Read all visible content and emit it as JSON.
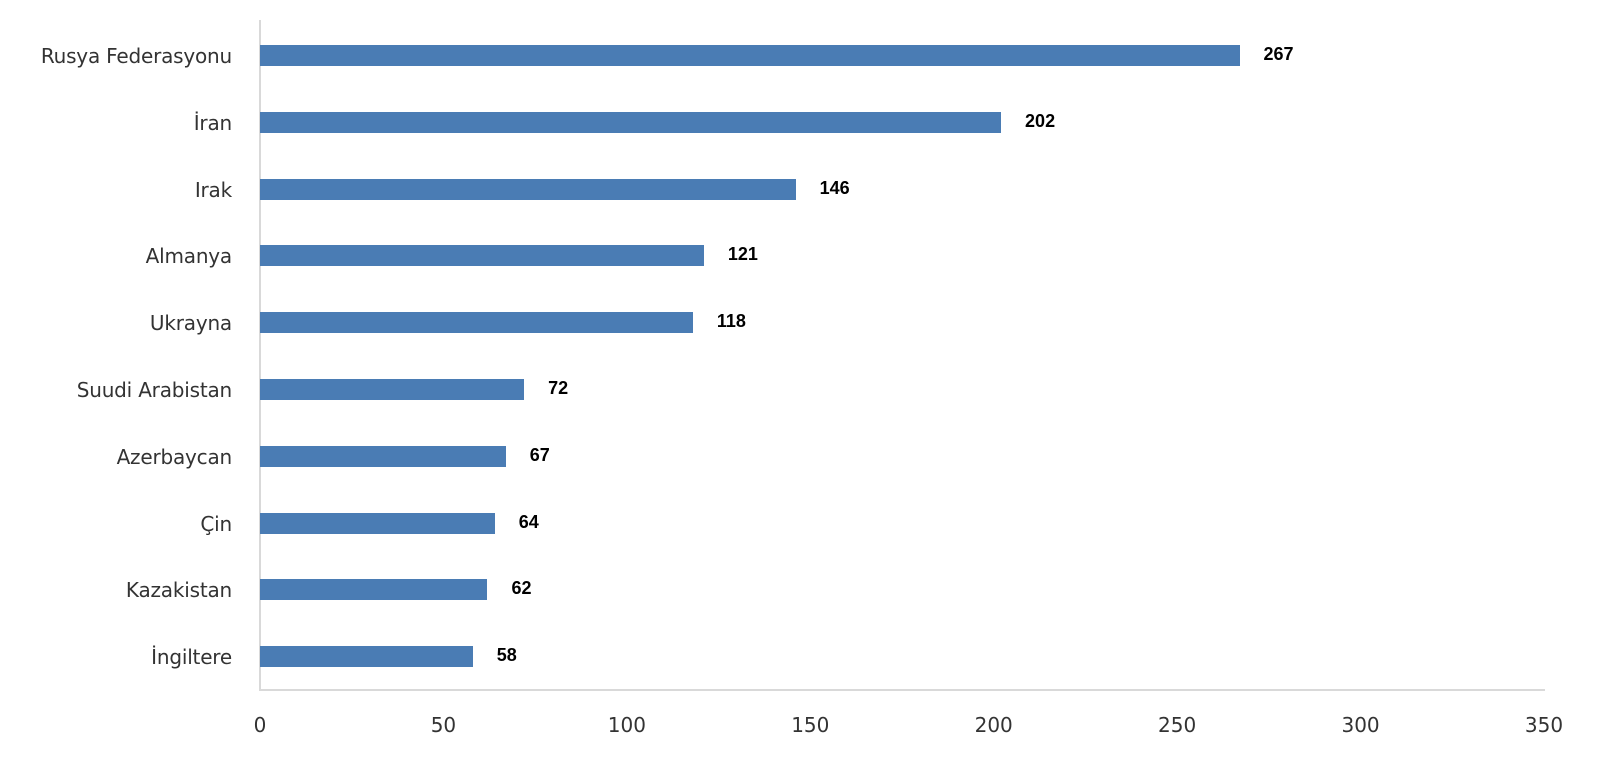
{
  "chart_data": {
    "type": "bar",
    "orientation": "horizontal",
    "title": "",
    "xlabel": "",
    "ylabel": "",
    "categories": [
      "Rusya Federasyonu",
      "İran",
      "Irak",
      "Almanya",
      "Ukrayna",
      "Suudi Arabistan",
      "Azerbaycan",
      "Çin",
      "Kazakistan",
      "İngiltere"
    ],
    "values": [
      267,
      202,
      146,
      121,
      118,
      72,
      67,
      64,
      62,
      58
    ],
    "xlim": [
      0,
      350
    ],
    "xticks": [
      "0",
      "50",
      "100",
      "150",
      "200",
      "250",
      "300",
      "350"
    ],
    "grid": false,
    "legend": null,
    "data_labels": true,
    "bar_color": "#4a7cb4"
  }
}
